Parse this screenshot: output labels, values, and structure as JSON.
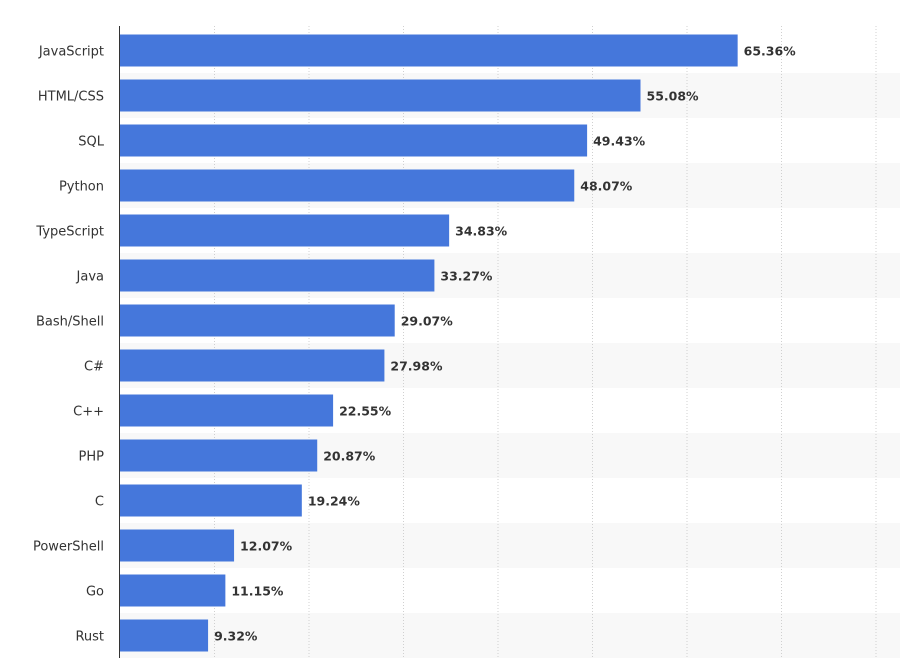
{
  "chart_data": {
    "type": "bar",
    "orientation": "horizontal",
    "title": "",
    "xlabel": "",
    "ylabel": "",
    "categories": [
      "JavaScript",
      "HTML/CSS",
      "SQL",
      "Python",
      "TypeScript",
      "Java",
      "Bash/Shell",
      "C#",
      "C++",
      "PHP",
      "C",
      "PowerShell",
      "Go",
      "Rust"
    ],
    "values": [
      65.36,
      55.08,
      49.43,
      48.07,
      34.83,
      33.27,
      29.07,
      27.98,
      22.55,
      20.87,
      19.24,
      12.07,
      11.15,
      9.32
    ],
    "value_labels": [
      "65.36%",
      "55.08%",
      "49.43%",
      "48.07%",
      "34.83%",
      "33.27%",
      "29.07%",
      "27.98%",
      "22.55%",
      "20.87%",
      "19.24%",
      "12.07%",
      "11.15%",
      "9.32%"
    ],
    "xlim": [
      0,
      80
    ],
    "grid_step": 10,
    "grid": true,
    "bar_color": "#4577DB",
    "alt_row_color": "#F8F8F8"
  }
}
